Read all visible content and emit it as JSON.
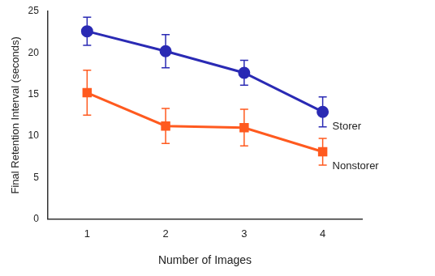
{
  "chart_data": {
    "type": "line",
    "x_label": "Number of Images",
    "y_label": "Final Retention Interval (seconds)",
    "categories": [
      "1",
      "2",
      "3",
      "4"
    ],
    "series": [
      {
        "name": "Storer",
        "color": "#2a2ab4",
        "marker": "circle",
        "values": [
          22.6,
          20.2,
          17.6,
          12.9
        ],
        "errors": [
          1.7,
          2.0,
          1.5,
          1.8
        ]
      },
      {
        "name": "Nonstorer",
        "color": "#ff5a1f",
        "marker": "square",
        "values": [
          15.2,
          11.2,
          11.0,
          8.1
        ],
        "errors": [
          2.7,
          2.1,
          2.2,
          1.6
        ]
      }
    ],
    "ylim": [
      0,
      25
    ],
    "yticks": [
      0,
      5,
      10,
      15,
      20,
      25
    ],
    "grid": false
  }
}
